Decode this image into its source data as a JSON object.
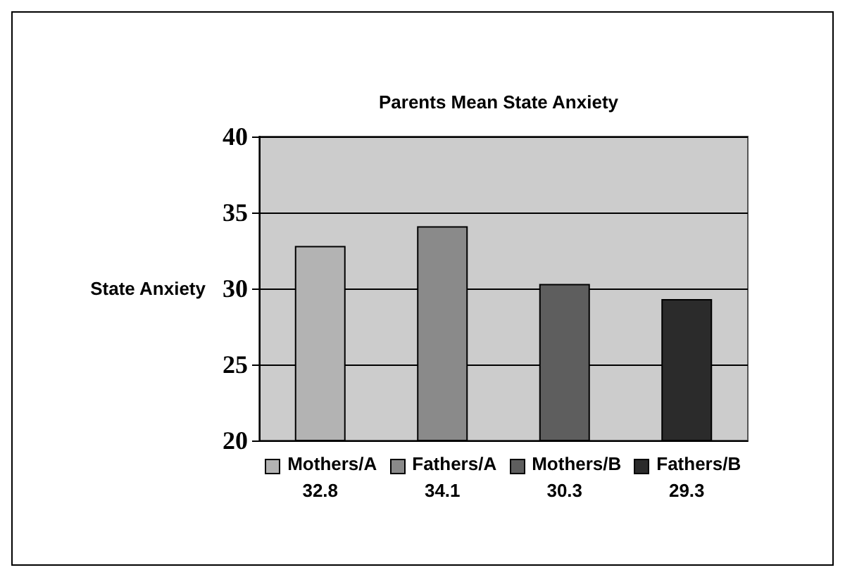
{
  "chart_data": {
    "type": "bar",
    "title": "Parents Mean State Anxiety",
    "ylabel": "State Anxiety",
    "categories": [
      "Mothers/A",
      "Fathers/A",
      "Mothers/B",
      "Fathers/B"
    ],
    "values": [
      32.8,
      34.1,
      30.3,
      29.3
    ],
    "colors": [
      "#b3b3b3",
      "#8a8a8a",
      "#5e5e5e",
      "#2b2b2b"
    ],
    "ylim": [
      20,
      40
    ],
    "yticks": [
      20,
      25,
      30,
      35,
      40
    ],
    "grid": "y",
    "data_labels": true
  }
}
